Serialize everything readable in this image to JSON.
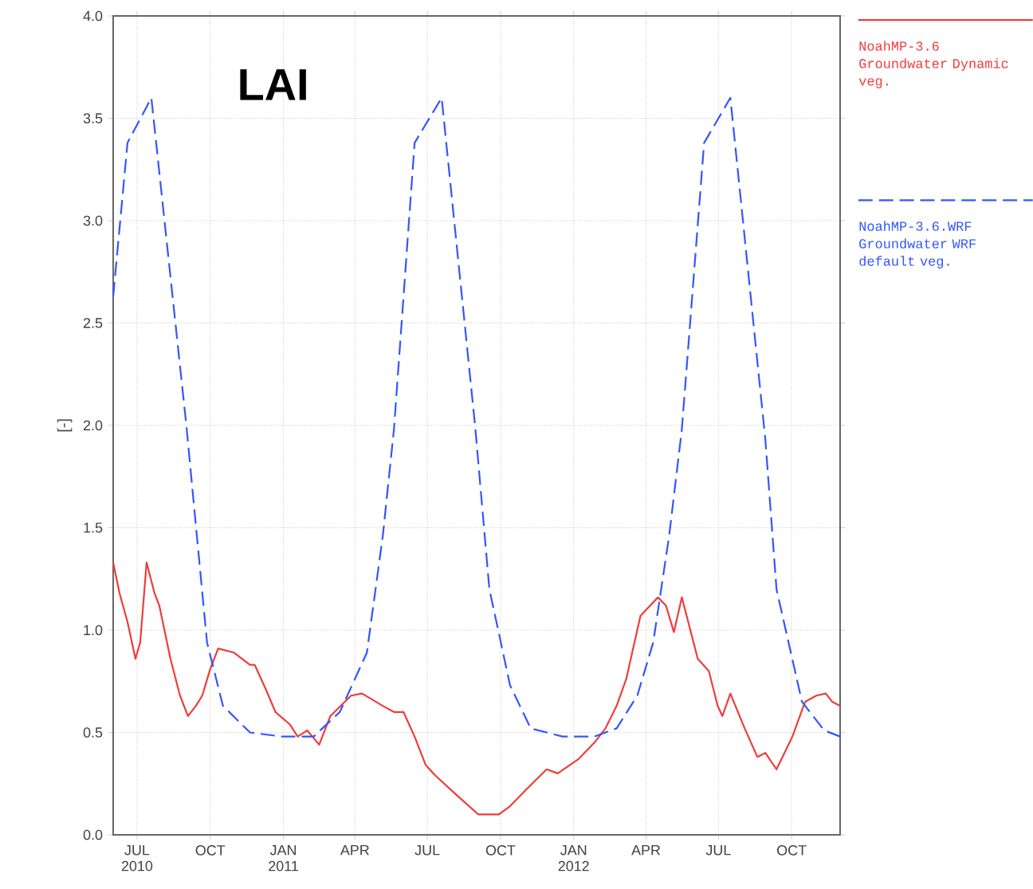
{
  "chart_data": {
    "type": "line",
    "title": "LAI",
    "ylabel": "[-]",
    "xlim": [
      "2010-06-01",
      "2012-12-01"
    ],
    "xticks": [
      {
        "value": "2010-07-01",
        "label": "JUL 2010"
      },
      {
        "value": "2010-10-01",
        "label": "OCT"
      },
      {
        "value": "2011-01-01",
        "label": "JAN 2011"
      },
      {
        "value": "2011-04-01",
        "label": "APR"
      },
      {
        "value": "2011-07-01",
        "label": "JUL"
      },
      {
        "value": "2011-10-01",
        "label": "OCT"
      },
      {
        "value": "2012-01-01",
        "label": "JAN 2012"
      },
      {
        "value": "2012-04-01",
        "label": "APR"
      },
      {
        "value": "2012-07-01",
        "label": "JUL"
      },
      {
        "value": "2012-10-01",
        "label": "OCT"
      }
    ],
    "ylim": [
      0,
      4
    ],
    "yticks": [
      {
        "value": 0,
        "label": "0.0"
      },
      0.5,
      {
        "value": 1,
        "label": "1.0"
      },
      1.5,
      {
        "value": 2,
        "label": "2.0"
      },
      2.5,
      {
        "value": 3,
        "label": "3.0"
      },
      3.5,
      {
        "value": 4,
        "label": "4.0"
      }
    ],
    "grid": true,
    "legend": "right",
    "series": [
      {
        "name": "NoahMP-3.6 Groundwater Dynamic veg.",
        "color": "#f03c3c",
        "line_style": "solid",
        "x": [
          "2010-06-01",
          "2010-06-09",
          "2010-06-19",
          "2010-06-29",
          "2010-07-05",
          "2010-07-13",
          "2010-07-23",
          "2010-07-29",
          "2010-08-12",
          "2010-08-24",
          "2010-09-03",
          "2010-09-13",
          "2010-09-21",
          "2010-10-01",
          "2010-10-11",
          "2010-10-31",
          "2010-11-20",
          "2010-11-26",
          "2010-12-10",
          "2010-12-22",
          "2011-01-09",
          "2011-01-19",
          "2011-01-31",
          "2011-02-15",
          "2011-03-01",
          "2011-03-27",
          "2011-04-10",
          "2011-05-06",
          "2011-05-20",
          "2011-06-01",
          "2011-06-15",
          "2011-06-29",
          "2011-07-11",
          "2011-08-08",
          "2011-09-03",
          "2011-09-29",
          "2011-10-13",
          "2011-11-02",
          "2011-11-28",
          "2011-12-12",
          "2012-01-07",
          "2012-01-27",
          "2012-02-10",
          "2012-02-24",
          "2012-03-07",
          "2012-03-25",
          "2012-04-16",
          "2012-04-26",
          "2012-05-06",
          "2012-05-16",
          "2012-06-05",
          "2012-06-19",
          "2012-06-30",
          "2012-07-06",
          "2012-07-16",
          "2012-08-03",
          "2012-08-19",
          "2012-08-29",
          "2012-09-12",
          "2012-09-22",
          "2012-10-02",
          "2012-10-18",
          "2012-11-01",
          "2012-11-13",
          "2012-11-21",
          "2012-12-01"
        ],
        "values": [
          1.33,
          1.18,
          1.04,
          0.86,
          0.94,
          1.33,
          1.18,
          1.12,
          0.86,
          0.68,
          0.58,
          0.63,
          0.68,
          0.81,
          0.91,
          0.89,
          0.83,
          0.83,
          0.71,
          0.6,
          0.54,
          0.48,
          0.51,
          0.44,
          0.58,
          0.68,
          0.69,
          0.63,
          0.6,
          0.6,
          0.48,
          0.34,
          0.29,
          0.19,
          0.1,
          0.1,
          0.14,
          0.22,
          0.32,
          0.3,
          0.37,
          0.45,
          0.52,
          0.63,
          0.76,
          1.07,
          1.16,
          1.12,
          0.99,
          1.16,
          0.86,
          0.8,
          0.63,
          0.58,
          0.69,
          0.52,
          0.38,
          0.4,
          0.32,
          0.4,
          0.48,
          0.65,
          0.68,
          0.69,
          0.65,
          0.63
        ]
      },
      {
        "name": "NoahMP-3.6.WRF Groundwater WRF default veg.",
        "color": "#3355ff",
        "line_style": "dashed",
        "x": [
          "2010-06-01",
          "2010-06-19",
          "2010-07-19",
          "2010-09-01",
          "2010-09-27",
          "2010-10-17",
          "2010-11-20",
          "2010-12-30",
          "2011-02-08",
          "2011-03-13",
          "2011-04-16",
          "2011-05-06",
          "2011-05-20",
          "2011-06-15",
          "2011-07-19",
          "2011-08-30",
          "2011-09-17",
          "2011-10-13",
          "2011-11-08",
          "2011-12-18",
          "2012-01-27",
          "2012-02-24",
          "2012-03-21",
          "2012-04-10",
          "2012-04-30",
          "2012-05-16",
          "2012-06-13",
          "2012-07-16",
          "2012-08-29",
          "2012-09-12",
          "2012-10-14",
          "2012-11-11",
          "2012-12-01"
        ],
        "values": [
          2.63,
          3.38,
          3.6,
          2.0,
          0.94,
          0.63,
          0.5,
          0.48,
          0.48,
          0.6,
          0.89,
          1.46,
          1.98,
          3.38,
          3.6,
          2.0,
          1.2,
          0.73,
          0.52,
          0.48,
          0.48,
          0.52,
          0.68,
          0.94,
          1.46,
          1.98,
          3.38,
          3.6,
          1.93,
          1.2,
          0.65,
          0.51,
          0.48
        ]
      }
    ]
  }
}
